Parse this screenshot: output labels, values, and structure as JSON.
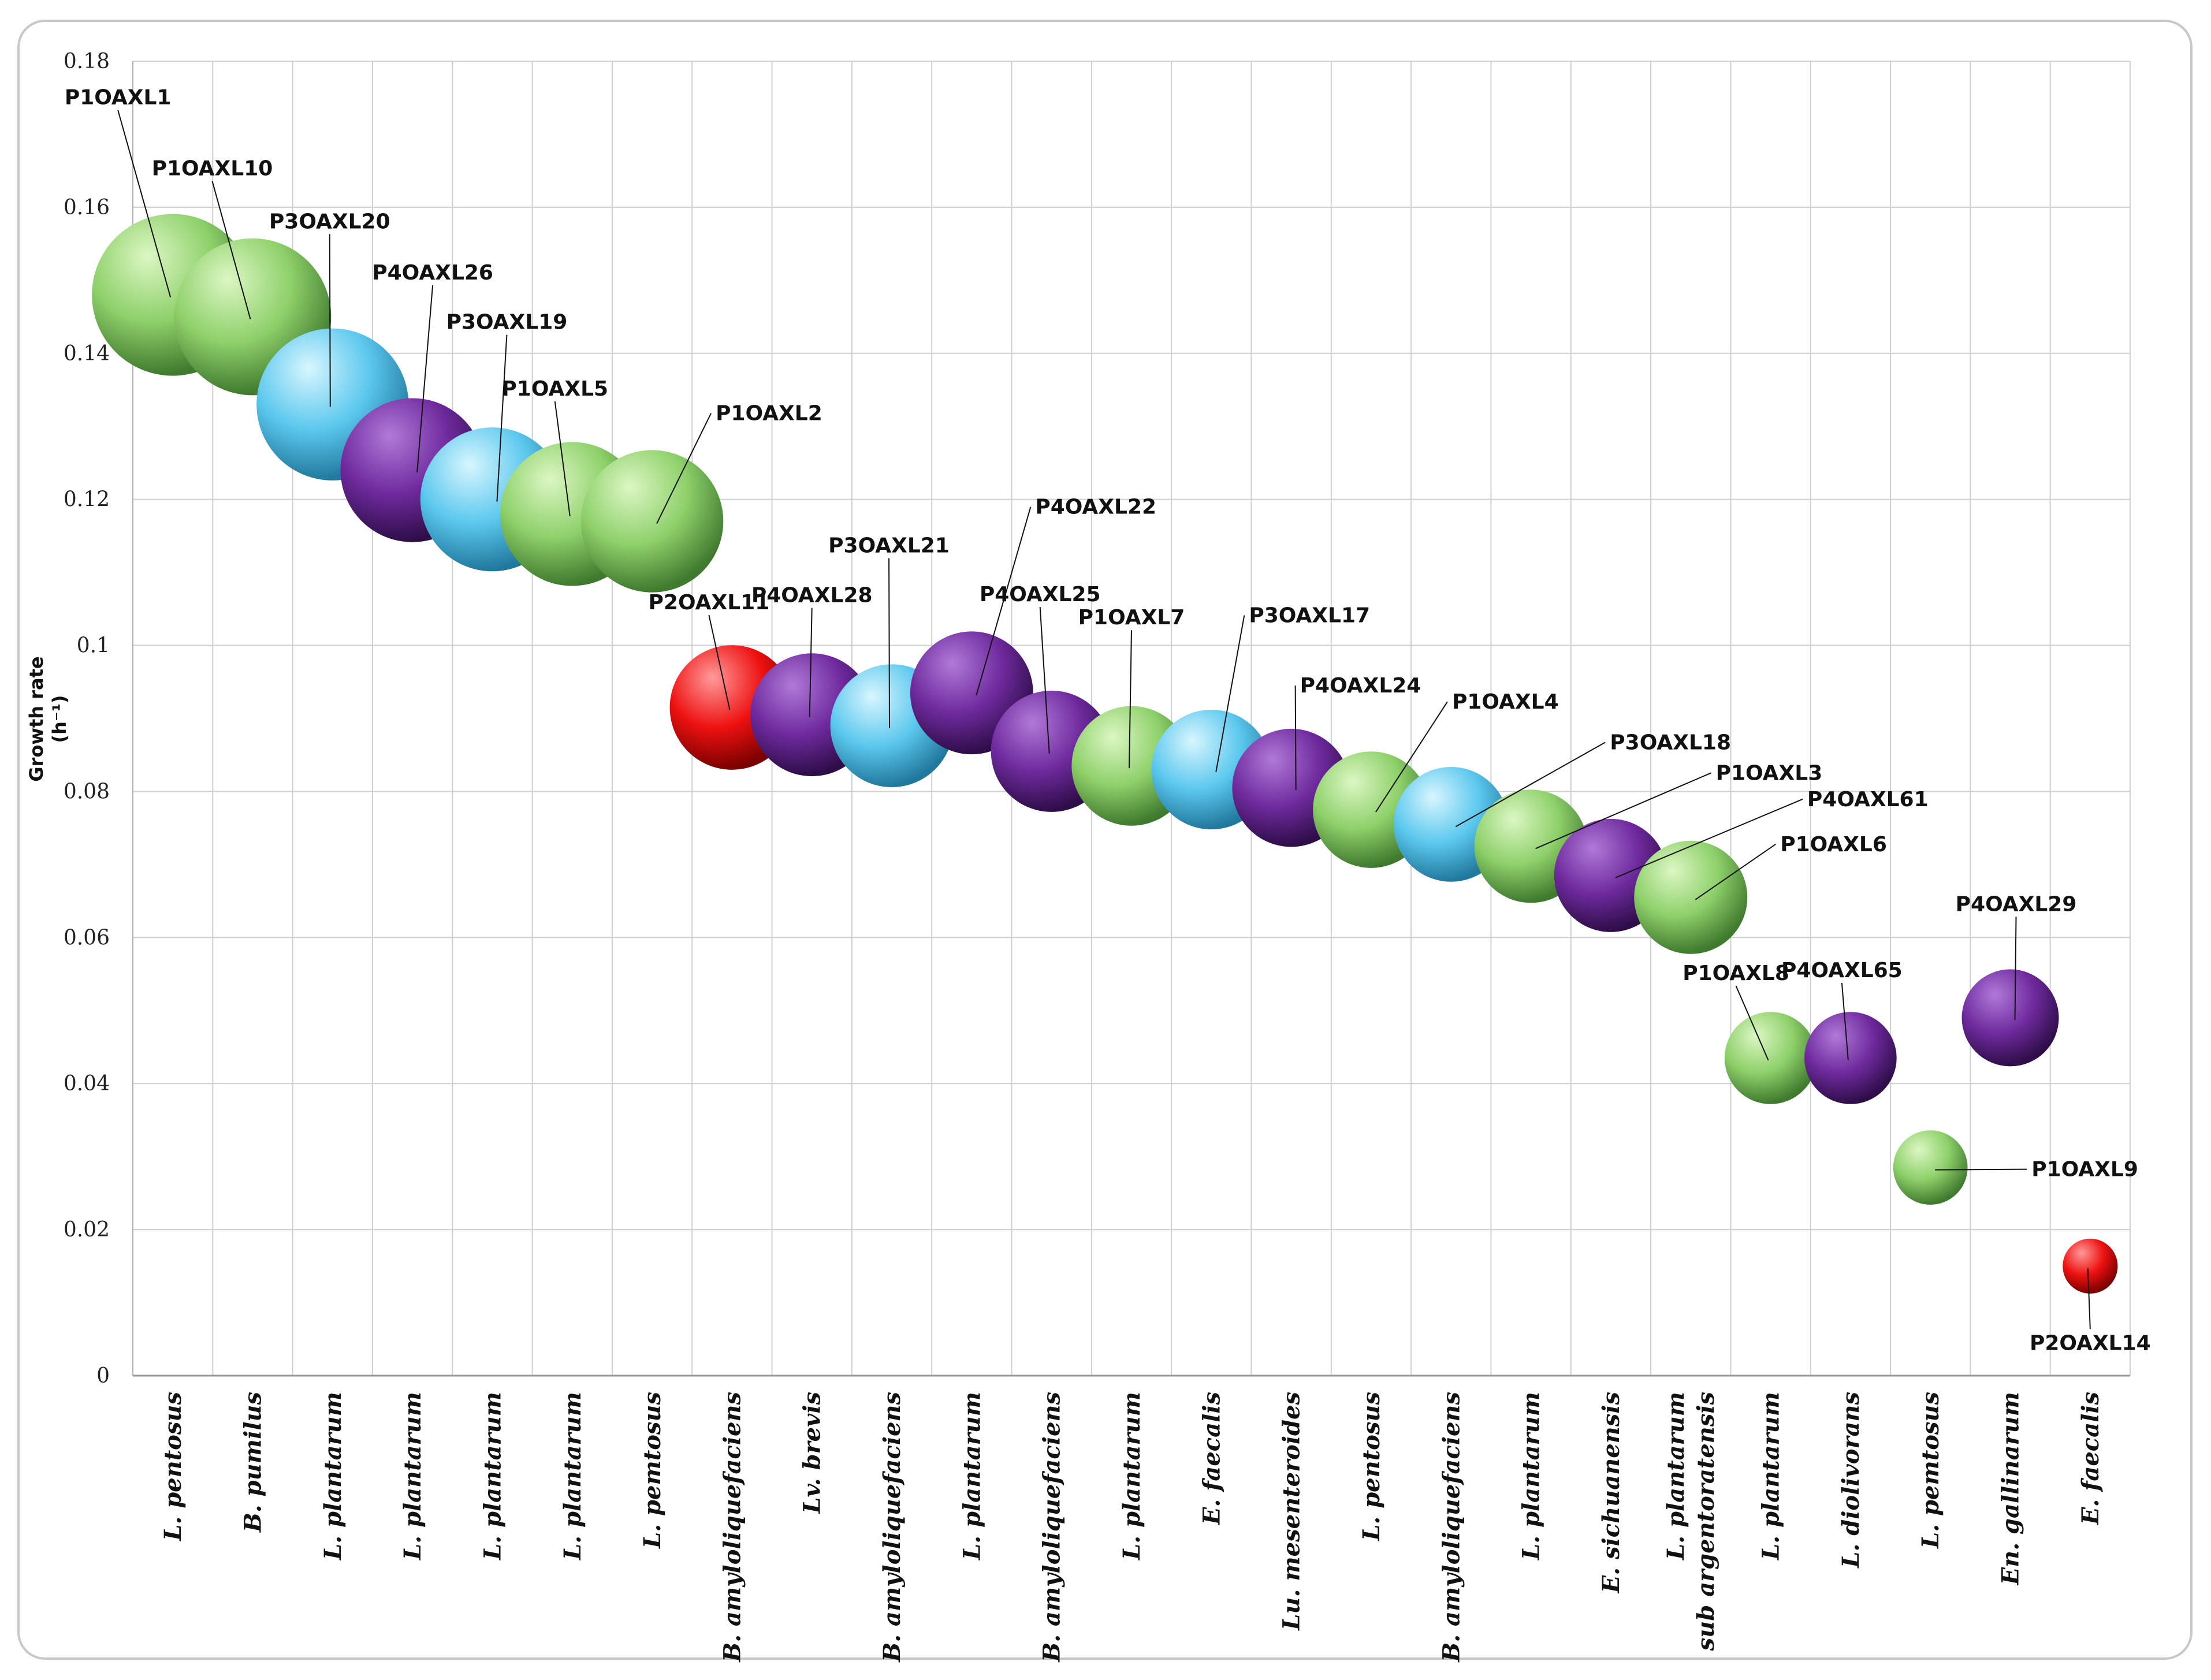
{
  "chart_data": {
    "type": "bubble",
    "ylabel_line1": "Growth rate",
    "ylabel_line2": "(h⁻¹)",
    "ylim": [
      0,
      0.18
    ],
    "yticks": [
      "0",
      "0.02",
      "0.04",
      "0.06",
      "0.08",
      "0.1",
      "0.12",
      "0.14",
      "0.16",
      "0.18"
    ],
    "grid": true,
    "colors": {
      "green": "#8ed06a",
      "blue": "#5cc8ee",
      "purple": "#7a2fa8",
      "red": "#ee1111"
    },
    "points": [
      {
        "label": "P1OAXL1",
        "category": "L. pentosus",
        "y": 0.148,
        "size": 1.0,
        "color": "green"
      },
      {
        "label": "P1OAXL10",
        "category": "B. pumilus",
        "y": 0.145,
        "size": 0.97,
        "color": "green"
      },
      {
        "label": "P3OAXL20",
        "category": "L. plantarum",
        "y": 0.133,
        "size": 0.94,
        "color": "blue"
      },
      {
        "label": "P4OAXL26",
        "category": "L. plantarum",
        "y": 0.124,
        "size": 0.89,
        "color": "purple"
      },
      {
        "label": "P3OAXL19",
        "category": "L. plantarum",
        "y": 0.12,
        "size": 0.89,
        "color": "blue"
      },
      {
        "label": "P1OAXL5",
        "category": "L. plantarum",
        "y": 0.118,
        "size": 0.89,
        "color": "green"
      },
      {
        "label": "P1OAXL2",
        "category": "L. pemtosus",
        "y": 0.117,
        "size": 0.88,
        "color": "green"
      },
      {
        "label": "P2OAXL11",
        "category": "B. amyloliquefaciens",
        "y": 0.0915,
        "size": 0.77,
        "color": "red"
      },
      {
        "label": "P4OAXL28",
        "category": "Lv. brevis",
        "y": 0.0905,
        "size": 0.76,
        "color": "purple"
      },
      {
        "label": "P3OAXL21",
        "category": "B. amyloliquefaciens",
        "y": 0.089,
        "size": 0.76,
        "color": "blue"
      },
      {
        "label": "P4OAXL22",
        "category": "L. plantarum",
        "y": 0.0935,
        "size": 0.76,
        "color": "purple"
      },
      {
        "label": "P4OAXL25",
        "category": "B. amyloliquefaciens",
        "y": 0.0855,
        "size": 0.75,
        "color": "purple"
      },
      {
        "label": "P1OAXL7",
        "category": "L. plantarum",
        "y": 0.0835,
        "size": 0.74,
        "color": "green"
      },
      {
        "label": "P3OAXL17",
        "category": "E. faecalis",
        "y": 0.083,
        "size": 0.74,
        "color": "blue"
      },
      {
        "label": "P4OAXL24",
        "category": "Lu. mesenteroides",
        "y": 0.0805,
        "size": 0.73,
        "color": "purple"
      },
      {
        "label": "P1OAXL4",
        "category": "L. pentosus",
        "y": 0.0775,
        "size": 0.72,
        "color": "green"
      },
      {
        "label": "P3OAXL18",
        "category": "B. amyloliquefaciens",
        "y": 0.0755,
        "size": 0.71,
        "color": "blue"
      },
      {
        "label": "P1OAXL3",
        "category": "L. plantarum",
        "y": 0.0725,
        "size": 0.7,
        "color": "green"
      },
      {
        "label": "P4OAXL61",
        "category": "E. sichuanensis",
        "y": 0.0685,
        "size": 0.7,
        "color": "purple"
      },
      {
        "label": "P1OAXL6",
        "category": "L. plantarum sub argentoratensis",
        "y": 0.0655,
        "size": 0.7,
        "color": "green"
      },
      {
        "label": "P1OAXL8",
        "category": "L. plantarum",
        "y": 0.0435,
        "size": 0.57,
        "color": "green"
      },
      {
        "label": "P4OAXL65",
        "category": "L. diolivorans",
        "y": 0.0435,
        "size": 0.57,
        "color": "purple"
      },
      {
        "label": "P1OAXL9",
        "category": "L. pemtosus",
        "y": 0.0285,
        "size": 0.46,
        "color": "green"
      },
      {
        "label": "P4OAXL29",
        "category": "En. gallinarum",
        "y": 0.049,
        "size": 0.6,
        "color": "purple"
      },
      {
        "label": "P2OAXL14",
        "category": "E. faecalis",
        "y": 0.015,
        "size": 0.34,
        "color": "red"
      }
    ]
  }
}
